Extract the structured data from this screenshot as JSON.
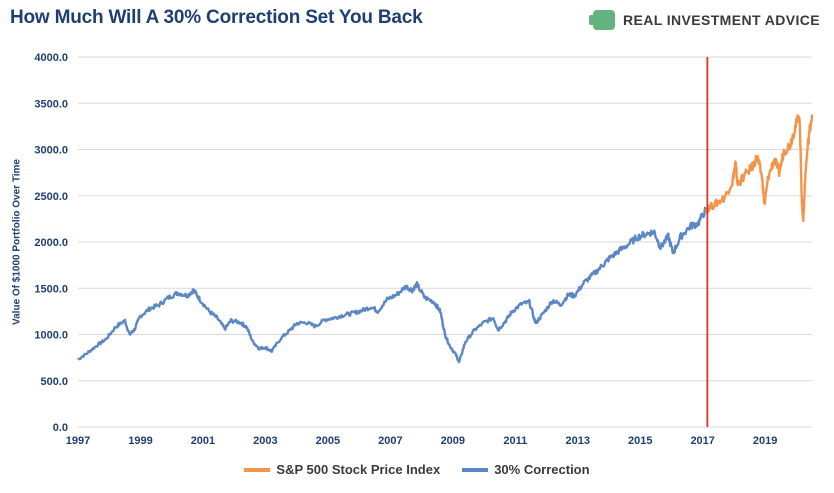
{
  "chart_data": {
    "type": "line",
    "title": "How Much Will A 30% Correction Set You Back",
    "brand": "REAL INVESTMENT ADVICE",
    "ylabel": "Value Of $1000 Portfolio Over Time",
    "xlabel": "",
    "xlim": [
      1997,
      2020.5
    ],
    "ylim": [
      0,
      4000
    ],
    "x_ticks": [
      "1997",
      "1999",
      "2001",
      "2003",
      "2005",
      "2007",
      "2009",
      "2011",
      "2013",
      "2015",
      "2017",
      "2019"
    ],
    "y_ticks": [
      "0.0",
      "500.0",
      "1000.0",
      "1500.0",
      "2000.0",
      "2500.0",
      "3000.0",
      "3500.0",
      "4000.0"
    ],
    "grid": true,
    "legend_position": "bottom",
    "marker_x": 2017.15,
    "colors": {
      "sp500": "#f39449",
      "correction": "#5b87c5",
      "marker": "#d9342b",
      "grid": "#d9d9d9",
      "title": "#1f3f73"
    },
    "series": [
      {
        "name": "30% Correction",
        "color": "#5b87c5",
        "points": [
          [
            1997.0,
            730
          ],
          [
            1997.3,
            800
          ],
          [
            1997.6,
            880
          ],
          [
            1997.9,
            950
          ],
          [
            1998.2,
            1080
          ],
          [
            1998.5,
            1150
          ],
          [
            1998.65,
            1000
          ],
          [
            1998.8,
            1050
          ],
          [
            1999.0,
            1200
          ],
          [
            1999.3,
            1280
          ],
          [
            1999.6,
            1320
          ],
          [
            1999.9,
            1400
          ],
          [
            2000.2,
            1450
          ],
          [
            2000.5,
            1420
          ],
          [
            2000.7,
            1480
          ],
          [
            2000.9,
            1380
          ],
          [
            2001.2,
            1250
          ],
          [
            2001.45,
            1180
          ],
          [
            2001.7,
            1060
          ],
          [
            2001.9,
            1150
          ],
          [
            2002.2,
            1130
          ],
          [
            2002.4,
            1080
          ],
          [
            2002.6,
            920
          ],
          [
            2002.8,
            850
          ],
          [
            2003.0,
            860
          ],
          [
            2003.2,
            820
          ],
          [
            2003.5,
            960
          ],
          [
            2003.8,
            1050
          ],
          [
            2004.0,
            1120
          ],
          [
            2004.3,
            1130
          ],
          [
            2004.6,
            1090
          ],
          [
            2004.9,
            1160
          ],
          [
            2005.2,
            1180
          ],
          [
            2005.5,
            1210
          ],
          [
            2005.8,
            1230
          ],
          [
            2006.1,
            1260
          ],
          [
            2006.4,
            1300
          ],
          [
            2006.6,
            1250
          ],
          [
            2006.9,
            1380
          ],
          [
            2007.2,
            1430
          ],
          [
            2007.5,
            1520
          ],
          [
            2007.7,
            1480
          ],
          [
            2007.85,
            1540
          ],
          [
            2008.1,
            1400
          ],
          [
            2008.4,
            1350
          ],
          [
            2008.6,
            1250
          ],
          [
            2008.75,
            1000
          ],
          [
            2008.9,
            880
          ],
          [
            2009.1,
            780
          ],
          [
            2009.2,
            700
          ],
          [
            2009.4,
            920
          ],
          [
            2009.7,
            1050
          ],
          [
            2010.0,
            1130
          ],
          [
            2010.3,
            1180
          ],
          [
            2010.45,
            1050
          ],
          [
            2010.7,
            1150
          ],
          [
            2010.9,
            1250
          ],
          [
            2011.2,
            1330
          ],
          [
            2011.45,
            1350
          ],
          [
            2011.65,
            1120
          ],
          [
            2011.9,
            1230
          ],
          [
            2012.2,
            1370
          ],
          [
            2012.45,
            1320
          ],
          [
            2012.7,
            1430
          ],
          [
            2012.9,
            1420
          ],
          [
            2013.2,
            1560
          ],
          [
            2013.5,
            1650
          ],
          [
            2013.8,
            1750
          ],
          [
            2014.0,
            1820
          ],
          [
            2014.3,
            1900
          ],
          [
            2014.6,
            1970
          ],
          [
            2014.9,
            2050
          ],
          [
            2015.2,
            2090
          ],
          [
            2015.45,
            2110
          ],
          [
            2015.65,
            1940
          ],
          [
            2015.9,
            2060
          ],
          [
            2016.05,
            1880
          ],
          [
            2016.3,
            2060
          ],
          [
            2016.6,
            2170
          ],
          [
            2016.85,
            2200
          ],
          [
            2017.1,
            2350
          ]
        ]
      },
      {
        "name": "S&P 500 Stock Price Index",
        "color": "#f39449",
        "points": [
          [
            2017.1,
            2350
          ],
          [
            2017.4,
            2410
          ],
          [
            2017.7,
            2480
          ],
          [
            2017.95,
            2650
          ],
          [
            2018.05,
            2850
          ],
          [
            2018.12,
            2620
          ],
          [
            2018.3,
            2700
          ],
          [
            2018.6,
            2820
          ],
          [
            2018.75,
            2920
          ],
          [
            2018.9,
            2700
          ],
          [
            2018.98,
            2400
          ],
          [
            2019.1,
            2700
          ],
          [
            2019.3,
            2900
          ],
          [
            2019.45,
            2750
          ],
          [
            2019.6,
            2980
          ],
          [
            2019.8,
            3050
          ],
          [
            2019.95,
            3230
          ],
          [
            2020.1,
            3380
          ],
          [
            2020.18,
            2400
          ],
          [
            2020.22,
            2240
          ],
          [
            2020.3,
            2800
          ],
          [
            2020.4,
            3150
          ],
          [
            2020.5,
            3380
          ]
        ]
      }
    ]
  }
}
